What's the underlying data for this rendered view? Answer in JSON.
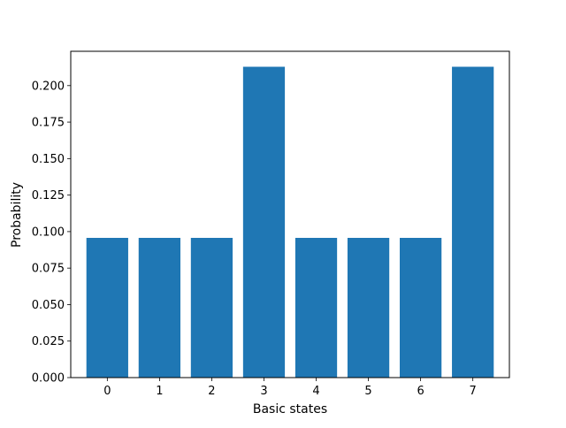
{
  "chart_data": {
    "type": "bar",
    "title": "",
    "xlabel": "Basic states",
    "ylabel": "Probability",
    "categories": [
      "0",
      "1",
      "2",
      "3",
      "4",
      "5",
      "6",
      "7"
    ],
    "values": [
      0.0957,
      0.0957,
      0.0957,
      0.2129,
      0.0957,
      0.0957,
      0.0957,
      0.2129
    ],
    "ylim": [
      0,
      0.2235
    ],
    "yticks": [
      0.0,
      0.025,
      0.05,
      0.075,
      0.1,
      0.125,
      0.15,
      0.175,
      0.2
    ],
    "ytick_labels": [
      "0.000",
      "0.025",
      "0.050",
      "0.075",
      "0.100",
      "0.125",
      "0.150",
      "0.175",
      "0.200"
    ],
    "bar_color": "#1f77b4",
    "grid": false,
    "legend": "none"
  }
}
